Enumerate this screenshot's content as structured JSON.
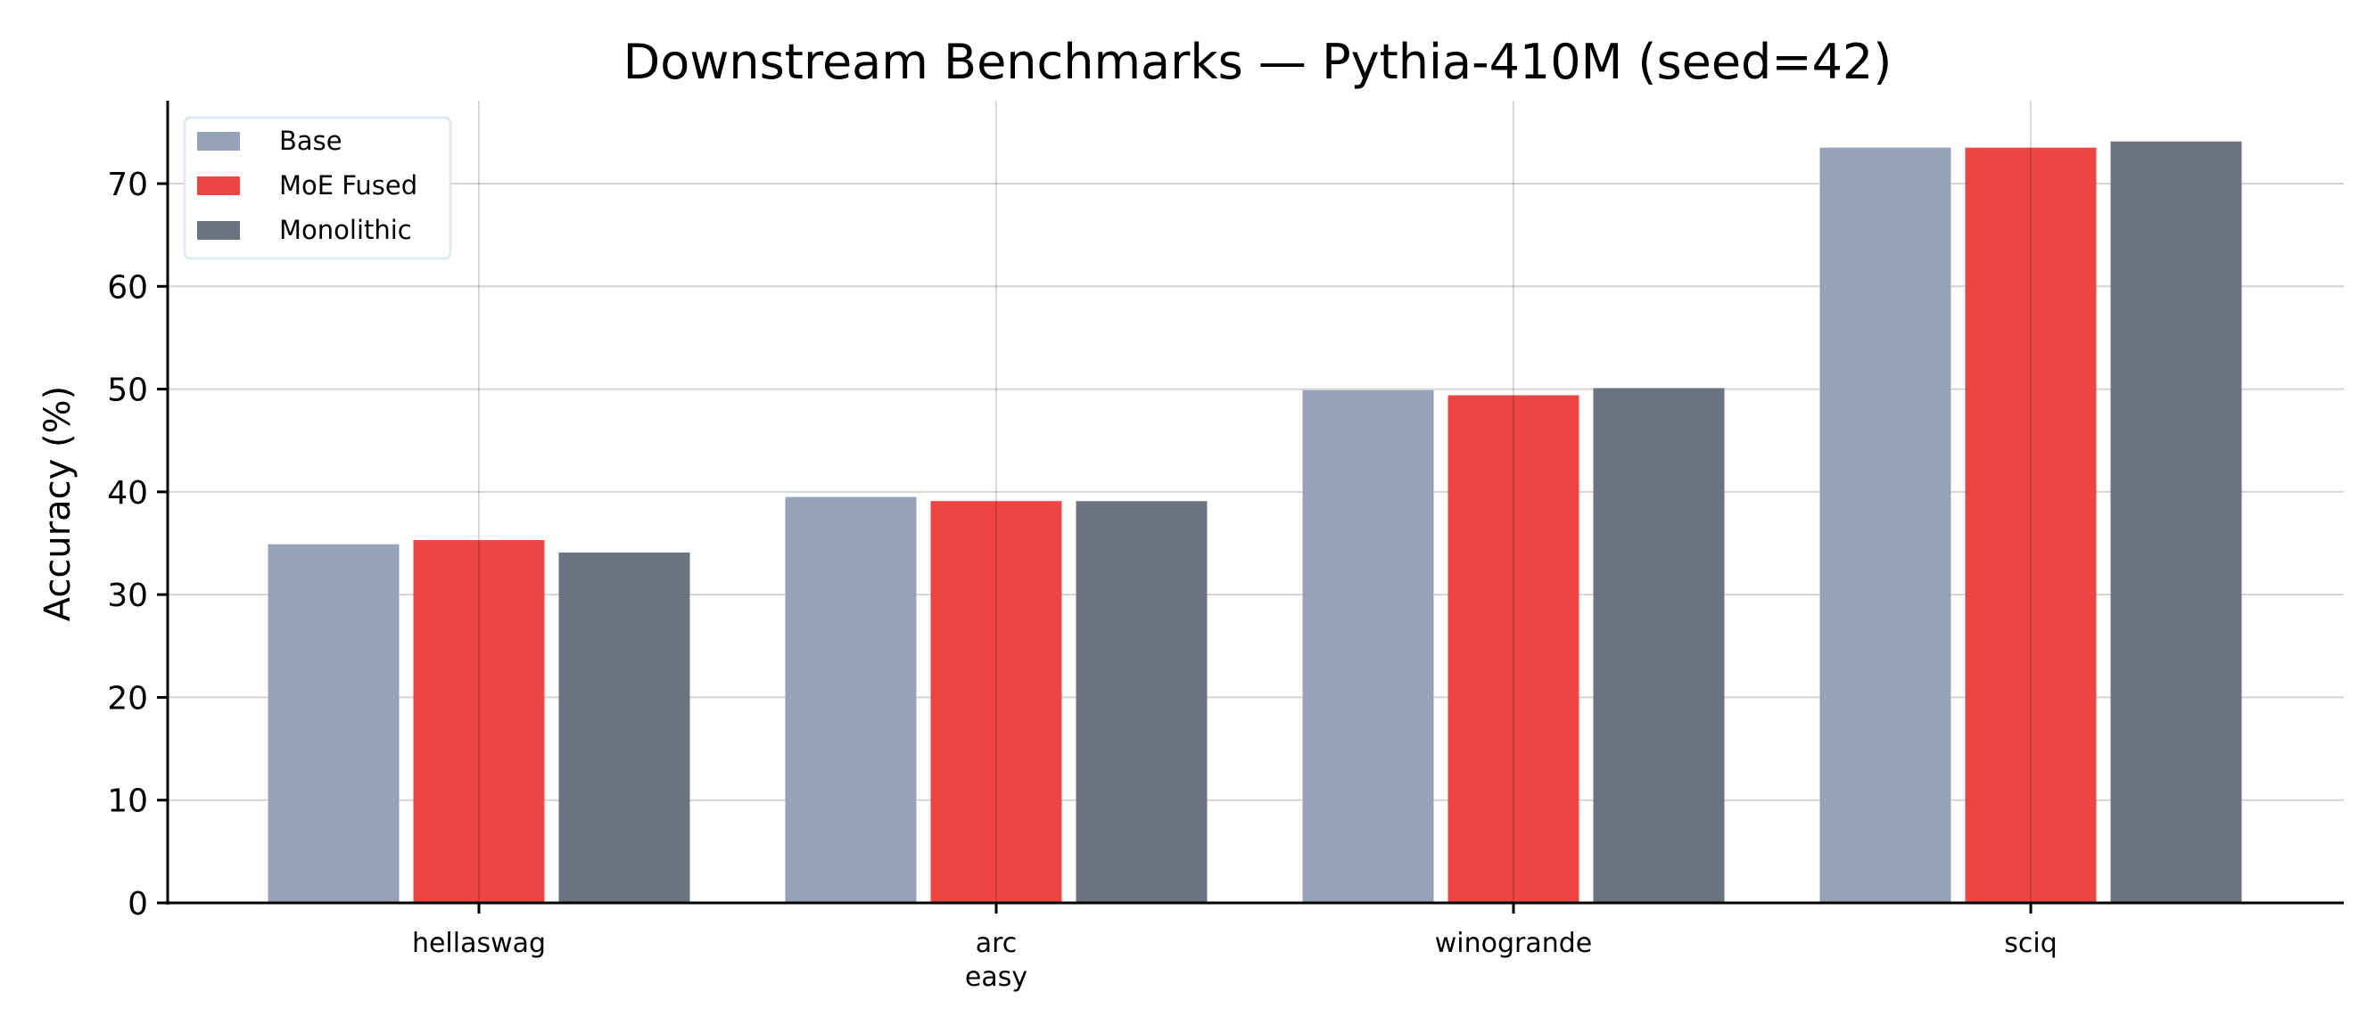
{
  "chart_data": {
    "type": "bar",
    "title": "Downstream Benchmarks — Pythia-410M (seed=42)",
    "xlabel": "",
    "ylabel": "Accuracy (%)",
    "categories": [
      "hellaswag",
      "arc\neasy",
      "winogrande",
      "sciq"
    ],
    "category_lines": [
      [
        "hellaswag"
      ],
      [
        "arc",
        "easy"
      ],
      [
        "winogrande"
      ],
      [
        "sciq"
      ]
    ],
    "series": [
      {
        "name": "Base",
        "color": "#94a3b8",
        "values": [
          34.9,
          39.5,
          49.9,
          73.5
        ]
      },
      {
        "name": "MoE Fused",
        "color": "#ef4444",
        "values": [
          35.3,
          39.1,
          49.4,
          73.5
        ]
      },
      {
        "name": "Monolithic",
        "color": "#6b7280",
        "values": [
          34.1,
          39.1,
          50.1,
          74.1
        ]
      }
    ],
    "ylim": [
      0,
      78
    ],
    "yticks": [
      0,
      10,
      20,
      30,
      40,
      50,
      60,
      70
    ],
    "grid": true,
    "legend_position": "upper left"
  }
}
